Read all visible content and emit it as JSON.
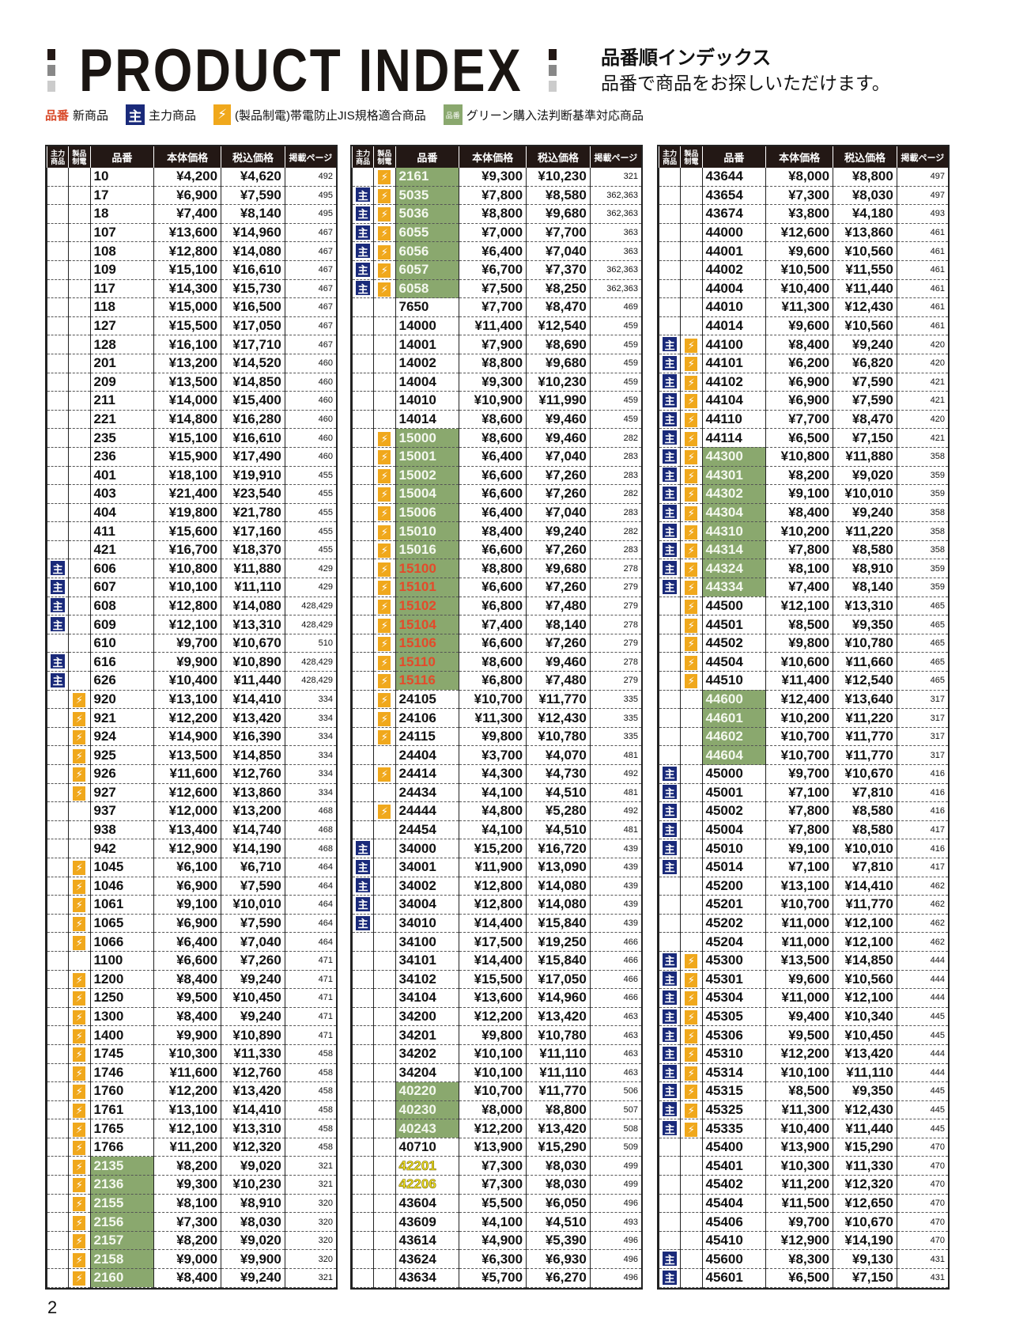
{
  "header": {
    "title": "PRODUCT INDEX",
    "subtitle1": "品番順インデックス",
    "subtitle2": "品番で商品をお探しいただけます。"
  },
  "legend": {
    "new_mark": "品番",
    "new_label": "新商品",
    "main_badge": "主",
    "main_label": "主力商品",
    "static_badge": "⚡",
    "static_label": "(製品制電)帯電防止JIS規格適合商品",
    "green_badge": "品番",
    "green_label": "グリーン購入法判断基準対応商品"
  },
  "columns": {
    "main": "主力商品",
    "static": "製品制電",
    "no": "品番",
    "price": "本体価格",
    "tax": "税込価格",
    "page": "掲載ページ"
  },
  "colors": {
    "main": "#1a2a7a",
    "static": "#f0a81c",
    "green": "#8aa86e",
    "new": "#e44a2a"
  },
  "page_number": "2",
  "tables": [
    [
      [
        "10",
        "¥4,200",
        "¥4,620",
        "492",
        ""
      ],
      [
        "17",
        "¥6,900",
        "¥7,590",
        "495",
        ""
      ],
      [
        "18",
        "¥7,400",
        "¥8,140",
        "495",
        ""
      ],
      [
        "107",
        "¥13,600",
        "¥14,960",
        "467",
        ""
      ],
      [
        "108",
        "¥12,800",
        "¥14,080",
        "467",
        ""
      ],
      [
        "109",
        "¥15,100",
        "¥16,610",
        "467",
        ""
      ],
      [
        "117",
        "¥14,300",
        "¥15,730",
        "467",
        ""
      ],
      [
        "118",
        "¥15,000",
        "¥16,500",
        "467",
        ""
      ],
      [
        "127",
        "¥15,500",
        "¥17,050",
        "467",
        ""
      ],
      [
        "128",
        "¥16,100",
        "¥17,710",
        "467",
        ""
      ],
      [
        "201",
        "¥13,200",
        "¥14,520",
        "460",
        ""
      ],
      [
        "209",
        "¥13,500",
        "¥14,850",
        "460",
        ""
      ],
      [
        "211",
        "¥14,000",
        "¥15,400",
        "460",
        ""
      ],
      [
        "221",
        "¥14,800",
        "¥16,280",
        "460",
        ""
      ],
      [
        "235",
        "¥15,100",
        "¥16,610",
        "460",
        ""
      ],
      [
        "236",
        "¥15,900",
        "¥17,490",
        "460",
        ""
      ],
      [
        "401",
        "¥18,100",
        "¥19,910",
        "455",
        ""
      ],
      [
        "403",
        "¥21,400",
        "¥23,540",
        "455",
        ""
      ],
      [
        "404",
        "¥19,800",
        "¥21,780",
        "455",
        ""
      ],
      [
        "411",
        "¥15,600",
        "¥17,160",
        "455",
        ""
      ],
      [
        "421",
        "¥16,700",
        "¥18,370",
        "455",
        ""
      ],
      [
        "606",
        "¥10,800",
        "¥11,880",
        "429",
        "M"
      ],
      [
        "607",
        "¥10,100",
        "¥11,110",
        "429",
        "M"
      ],
      [
        "608",
        "¥12,800",
        "¥14,080",
        "428,429",
        "M"
      ],
      [
        "609",
        "¥12,100",
        "¥13,310",
        "428,429",
        "M"
      ],
      [
        "610",
        "¥9,700",
        "¥10,670",
        "510",
        ""
      ],
      [
        "616",
        "¥9,900",
        "¥10,890",
        "428,429",
        "M"
      ],
      [
        "626",
        "¥10,400",
        "¥11,440",
        "428,429",
        "M"
      ],
      [
        "920",
        "¥13,100",
        "¥14,410",
        "334",
        "S"
      ],
      [
        "921",
        "¥12,200",
        "¥13,420",
        "334",
        "S"
      ],
      [
        "924",
        "¥14,900",
        "¥16,390",
        "334",
        "S"
      ],
      [
        "925",
        "¥13,500",
        "¥14,850",
        "334",
        "S"
      ],
      [
        "926",
        "¥11,600",
        "¥12,760",
        "334",
        "S"
      ],
      [
        "927",
        "¥12,600",
        "¥13,860",
        "334",
        "S"
      ],
      [
        "937",
        "¥12,000",
        "¥13,200",
        "468",
        ""
      ],
      [
        "938",
        "¥13,400",
        "¥14,740",
        "468",
        ""
      ],
      [
        "942",
        "¥12,900",
        "¥14,190",
        "468",
        ""
      ],
      [
        "1045",
        "¥6,100",
        "¥6,710",
        "464",
        "S"
      ],
      [
        "1046",
        "¥6,900",
        "¥7,590",
        "464",
        "S"
      ],
      [
        "1061",
        "¥9,100",
        "¥10,010",
        "464",
        "S"
      ],
      [
        "1065",
        "¥6,900",
        "¥7,590",
        "464",
        "S"
      ],
      [
        "1066",
        "¥6,400",
        "¥7,040",
        "464",
        "S"
      ],
      [
        "1100",
        "¥6,600",
        "¥7,260",
        "471",
        ""
      ],
      [
        "1200",
        "¥8,400",
        "¥9,240",
        "471",
        "S"
      ],
      [
        "1250",
        "¥9,500",
        "¥10,450",
        "471",
        "S"
      ],
      [
        "1300",
        "¥8,400",
        "¥9,240",
        "471",
        "S"
      ],
      [
        "1400",
        "¥9,900",
        "¥10,890",
        "471",
        "S"
      ],
      [
        "1745",
        "¥10,300",
        "¥11,330",
        "458",
        "S"
      ],
      [
        "1746",
        "¥11,600",
        "¥12,760",
        "458",
        "S"
      ],
      [
        "1760",
        "¥12,200",
        "¥13,420",
        "458",
        "S"
      ],
      [
        "1761",
        "¥13,100",
        "¥14,410",
        "458",
        "S"
      ],
      [
        "1765",
        "¥12,100",
        "¥13,310",
        "458",
        "S"
      ],
      [
        "1766",
        "¥11,200",
        "¥12,320",
        "458",
        "S"
      ],
      [
        "2135",
        "¥8,200",
        "¥9,020",
        "321",
        "Sg"
      ],
      [
        "2136",
        "¥9,300",
        "¥10,230",
        "321",
        "Sg"
      ],
      [
        "2155",
        "¥8,100",
        "¥8,910",
        "320",
        "Sg"
      ],
      [
        "2156",
        "¥7,300",
        "¥8,030",
        "320",
        "Sg"
      ],
      [
        "2157",
        "¥8,200",
        "¥9,020",
        "320",
        "Sg"
      ],
      [
        "2158",
        "¥9,000",
        "¥9,900",
        "320",
        "Sg"
      ],
      [
        "2160",
        "¥8,400",
        "¥9,240",
        "321",
        "Sg"
      ]
    ],
    [
      [
        "2161",
        "¥9,300",
        "¥10,230",
        "321",
        "Sg"
      ],
      [
        "5035",
        "¥7,800",
        "¥8,580",
        "362,363",
        "MSg"
      ],
      [
        "5036",
        "¥8,800",
        "¥9,680",
        "362,363",
        "MSg"
      ],
      [
        "6055",
        "¥7,000",
        "¥7,700",
        "363",
        "MSg"
      ],
      [
        "6056",
        "¥6,400",
        "¥7,040",
        "363",
        "MSg"
      ],
      [
        "6057",
        "¥6,700",
        "¥7,370",
        "362,363",
        "MSg"
      ],
      [
        "6058",
        "¥7,500",
        "¥8,250",
        "362,363",
        "MSg"
      ],
      [
        "7650",
        "¥7,700",
        "¥8,470",
        "469",
        ""
      ],
      [
        "14000",
        "¥11,400",
        "¥12,540",
        "459",
        ""
      ],
      [
        "14001",
        "¥7,900",
        "¥8,690",
        "459",
        ""
      ],
      [
        "14002",
        "¥8,800",
        "¥9,680",
        "459",
        ""
      ],
      [
        "14004",
        "¥9,300",
        "¥10,230",
        "459",
        ""
      ],
      [
        "14010",
        "¥10,900",
        "¥11,990",
        "459",
        ""
      ],
      [
        "14014",
        "¥8,600",
        "¥9,460",
        "459",
        ""
      ],
      [
        "15000",
        "¥8,600",
        "¥9,460",
        "282",
        "Sg"
      ],
      [
        "15001",
        "¥6,400",
        "¥7,040",
        "283",
        "Sg"
      ],
      [
        "15002",
        "¥6,600",
        "¥7,260",
        "283",
        "Sg"
      ],
      [
        "15004",
        "¥6,600",
        "¥7,260",
        "282",
        "Sg"
      ],
      [
        "15006",
        "¥6,400",
        "¥7,040",
        "283",
        "Sg"
      ],
      [
        "15010",
        "¥8,400",
        "¥9,240",
        "282",
        "Sg"
      ],
      [
        "15016",
        "¥6,600",
        "¥7,260",
        "283",
        "Sg"
      ],
      [
        "15100",
        "¥8,800",
        "¥9,680",
        "278",
        "Sr"
      ],
      [
        "15101",
        "¥6,600",
        "¥7,260",
        "279",
        "Sr"
      ],
      [
        "15102",
        "¥6,800",
        "¥7,480",
        "279",
        "Sr"
      ],
      [
        "15104",
        "¥7,400",
        "¥8,140",
        "278",
        "Sr"
      ],
      [
        "15106",
        "¥6,600",
        "¥7,260",
        "279",
        "Sr"
      ],
      [
        "15110",
        "¥8,600",
        "¥9,460",
        "278",
        "Sr"
      ],
      [
        "15116",
        "¥6,800",
        "¥7,480",
        "279",
        "Sr"
      ],
      [
        "24105",
        "¥10,700",
        "¥11,770",
        "335",
        "S"
      ],
      [
        "24106",
        "¥11,300",
        "¥12,430",
        "335",
        "S"
      ],
      [
        "24115",
        "¥9,800",
        "¥10,780",
        "335",
        "S"
      ],
      [
        "24404",
        "¥3,700",
        "¥4,070",
        "481",
        ""
      ],
      [
        "24414",
        "¥4,300",
        "¥4,730",
        "492",
        "S"
      ],
      [
        "24434",
        "¥4,100",
        "¥4,510",
        "481",
        ""
      ],
      [
        "24444",
        "¥4,800",
        "¥5,280",
        "492",
        "S"
      ],
      [
        "24454",
        "¥4,100",
        "¥4,510",
        "481",
        ""
      ],
      [
        "34000",
        "¥15,200",
        "¥16,720",
        "439",
        "M"
      ],
      [
        "34001",
        "¥11,900",
        "¥13,090",
        "439",
        "M"
      ],
      [
        "34002",
        "¥12,800",
        "¥14,080",
        "439",
        "M"
      ],
      [
        "34004",
        "¥12,800",
        "¥14,080",
        "439",
        "M"
      ],
      [
        "34010",
        "¥14,400",
        "¥15,840",
        "439",
        "M"
      ],
      [
        "34100",
        "¥17,500",
        "¥19,250",
        "466",
        ""
      ],
      [
        "34101",
        "¥14,400",
        "¥15,840",
        "466",
        ""
      ],
      [
        "34102",
        "¥15,500",
        "¥17,050",
        "466",
        ""
      ],
      [
        "34104",
        "¥13,600",
        "¥14,960",
        "466",
        ""
      ],
      [
        "34200",
        "¥12,200",
        "¥13,420",
        "463",
        ""
      ],
      [
        "34201",
        "¥9,800",
        "¥10,780",
        "463",
        ""
      ],
      [
        "34202",
        "¥10,100",
        "¥11,110",
        "463",
        ""
      ],
      [
        "34204",
        "¥10,100",
        "¥11,110",
        "463",
        ""
      ],
      [
        "40220",
        "¥10,700",
        "¥11,770",
        "506",
        "g"
      ],
      [
        "40230",
        "¥8,000",
        "¥8,800",
        "507",
        "g"
      ],
      [
        "40243",
        "¥12,200",
        "¥13,420",
        "508",
        "g"
      ],
      [
        "40710",
        "¥13,900",
        "¥15,290",
        "509",
        ""
      ],
      [
        "42201",
        "¥7,300",
        "¥8,030",
        "499",
        "y"
      ],
      [
        "42206",
        "¥7,300",
        "¥8,030",
        "499",
        "y"
      ],
      [
        "43604",
        "¥5,500",
        "¥6,050",
        "496",
        ""
      ],
      [
        "43609",
        "¥4,100",
        "¥4,510",
        "493",
        ""
      ],
      [
        "43614",
        "¥4,900",
        "¥5,390",
        "496",
        ""
      ],
      [
        "43624",
        "¥6,300",
        "¥6,930",
        "496",
        ""
      ],
      [
        "43634",
        "¥5,700",
        "¥6,270",
        "496",
        ""
      ]
    ],
    [
      [
        "43644",
        "¥8,000",
        "¥8,800",
        "497",
        ""
      ],
      [
        "43654",
        "¥7,300",
        "¥8,030",
        "497",
        ""
      ],
      [
        "43674",
        "¥3,800",
        "¥4,180",
        "493",
        ""
      ],
      [
        "44000",
        "¥12,600",
        "¥13,860",
        "461",
        ""
      ],
      [
        "44001",
        "¥9,600",
        "¥10,560",
        "461",
        ""
      ],
      [
        "44002",
        "¥10,500",
        "¥11,550",
        "461",
        ""
      ],
      [
        "44004",
        "¥10,400",
        "¥11,440",
        "461",
        ""
      ],
      [
        "44010",
        "¥11,300",
        "¥12,430",
        "461",
        ""
      ],
      [
        "44014",
        "¥9,600",
        "¥10,560",
        "461",
        ""
      ],
      [
        "44100",
        "¥8,400",
        "¥9,240",
        "420",
        "MS"
      ],
      [
        "44101",
        "¥6,200",
        "¥6,820",
        "420",
        "MS"
      ],
      [
        "44102",
        "¥6,900",
        "¥7,590",
        "421",
        "MS"
      ],
      [
        "44104",
        "¥6,900",
        "¥7,590",
        "421",
        "MS"
      ],
      [
        "44110",
        "¥7,700",
        "¥8,470",
        "420",
        "MS"
      ],
      [
        "44114",
        "¥6,500",
        "¥7,150",
        "421",
        "MS"
      ],
      [
        "44300",
        "¥10,800",
        "¥11,880",
        "358",
        "MSg"
      ],
      [
        "44301",
        "¥8,200",
        "¥9,020",
        "359",
        "MSg"
      ],
      [
        "44302",
        "¥9,100",
        "¥10,010",
        "359",
        "MSg"
      ],
      [
        "44304",
        "¥8,400",
        "¥9,240",
        "358",
        "MSg"
      ],
      [
        "44310",
        "¥10,200",
        "¥11,220",
        "358",
        "MSg"
      ],
      [
        "44314",
        "¥7,800",
        "¥8,580",
        "358",
        "MSg"
      ],
      [
        "44324",
        "¥8,100",
        "¥8,910",
        "359",
        "MSg"
      ],
      [
        "44334",
        "¥7,400",
        "¥8,140",
        "359",
        "MSg"
      ],
      [
        "44500",
        "¥12,100",
        "¥13,310",
        "465",
        "S"
      ],
      [
        "44501",
        "¥8,500",
        "¥9,350",
        "465",
        "S"
      ],
      [
        "44502",
        "¥9,800",
        "¥10,780",
        "465",
        "S"
      ],
      [
        "44504",
        "¥10,600",
        "¥11,660",
        "465",
        "S"
      ],
      [
        "44510",
        "¥11,400",
        "¥12,540",
        "465",
        "S"
      ],
      [
        "44600",
        "¥12,400",
        "¥13,640",
        "317",
        "g"
      ],
      [
        "44601",
        "¥10,200",
        "¥11,220",
        "317",
        "g"
      ],
      [
        "44602",
        "¥10,700",
        "¥11,770",
        "317",
        "g"
      ],
      [
        "44604",
        "¥10,700",
        "¥11,770",
        "317",
        "g"
      ],
      [
        "45000",
        "¥9,700",
        "¥10,670",
        "416",
        "M"
      ],
      [
        "45001",
        "¥7,100",
        "¥7,810",
        "416",
        "M"
      ],
      [
        "45002",
        "¥7,800",
        "¥8,580",
        "416",
        "M"
      ],
      [
        "45004",
        "¥7,800",
        "¥8,580",
        "417",
        "M"
      ],
      [
        "45010",
        "¥9,100",
        "¥10,010",
        "416",
        "M"
      ],
      [
        "45014",
        "¥7,100",
        "¥7,810",
        "417",
        "M"
      ],
      [
        "45200",
        "¥13,100",
        "¥14,410",
        "462",
        ""
      ],
      [
        "45201",
        "¥10,700",
        "¥11,770",
        "462",
        ""
      ],
      [
        "45202",
        "¥11,000",
        "¥12,100",
        "462",
        ""
      ],
      [
        "45204",
        "¥11,000",
        "¥12,100",
        "462",
        ""
      ],
      [
        "45300",
        "¥13,500",
        "¥14,850",
        "444",
        "MS"
      ],
      [
        "45301",
        "¥9,600",
        "¥10,560",
        "444",
        "MS"
      ],
      [
        "45304",
        "¥11,000",
        "¥12,100",
        "444",
        "MS"
      ],
      [
        "45305",
        "¥9,400",
        "¥10,340",
        "445",
        "MS"
      ],
      [
        "45306",
        "¥9,500",
        "¥10,450",
        "445",
        "MS"
      ],
      [
        "45310",
        "¥12,200",
        "¥13,420",
        "444",
        "MS"
      ],
      [
        "45314",
        "¥10,100",
        "¥11,110",
        "444",
        "MS"
      ],
      [
        "45315",
        "¥8,500",
        "¥9,350",
        "445",
        "MS"
      ],
      [
        "45325",
        "¥11,300",
        "¥12,430",
        "445",
        "MS"
      ],
      [
        "45335",
        "¥10,400",
        "¥11,440",
        "445",
        "MS"
      ],
      [
        "45400",
        "¥13,900",
        "¥15,290",
        "470",
        ""
      ],
      [
        "45401",
        "¥10,300",
        "¥11,330",
        "470",
        ""
      ],
      [
        "45402",
        "¥11,200",
        "¥12,320",
        "470",
        ""
      ],
      [
        "45404",
        "¥11,500",
        "¥12,650",
        "470",
        ""
      ],
      [
        "45406",
        "¥9,700",
        "¥10,670",
        "470",
        ""
      ],
      [
        "45410",
        "¥12,900",
        "¥14,190",
        "470",
        ""
      ],
      [
        "45600",
        "¥8,300",
        "¥9,130",
        "431",
        "M"
      ],
      [
        "45601",
        "¥6,500",
        "¥7,150",
        "431",
        "M"
      ]
    ]
  ]
}
